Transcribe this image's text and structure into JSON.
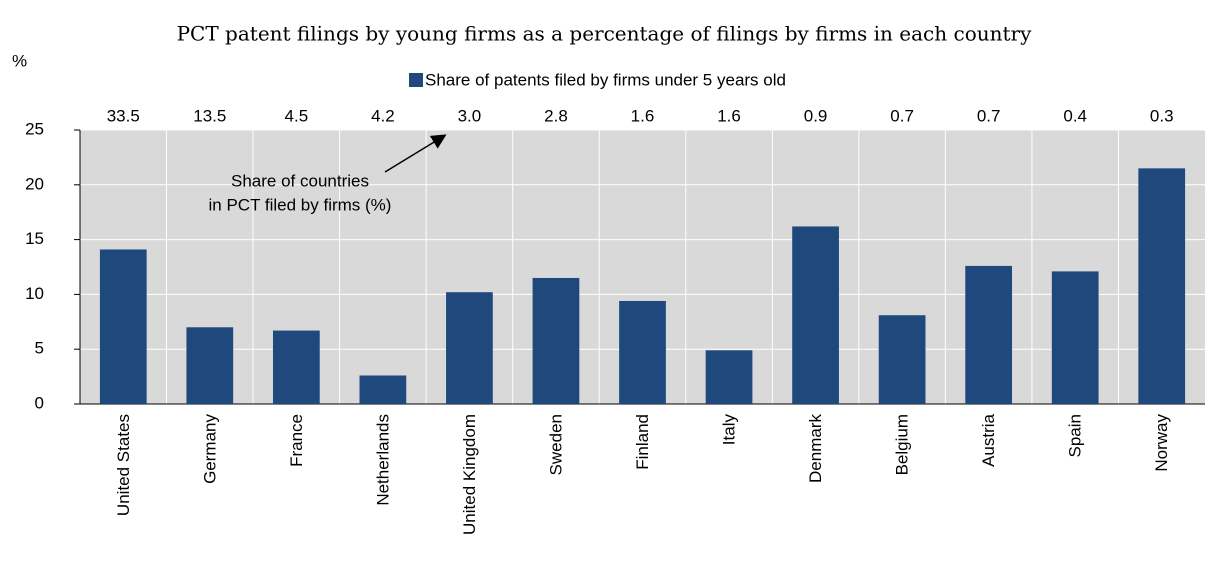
{
  "chart_data": {
    "type": "bar",
    "title": "PCT patent filings by young firms as a percentage of filings by firms in each country",
    "y_axis_label": "%",
    "categories": [
      "United States",
      "Germany",
      "France",
      "Netherlands",
      "United Kingdom",
      "Sweden",
      "Finland",
      "Italy",
      "Denmark",
      "Belgium",
      "Austria",
      "Spain",
      "Norway"
    ],
    "series": [
      {
        "name": "Share of patents filed by firms under 5 years old",
        "color": "#1f497d",
        "values": [
          14.1,
          7.0,
          6.7,
          2.6,
          10.2,
          11.5,
          9.4,
          4.9,
          16.2,
          8.1,
          12.6,
          12.1,
          21.5
        ]
      }
    ],
    "top_values": [
      33.5,
      13.5,
      4.5,
      4.2,
      3.0,
      2.8,
      1.6,
      1.6,
      0.9,
      0.7,
      0.7,
      0.4,
      0.3
    ],
    "top_value_labels": [
      "33.5",
      "13.5",
      "4.5",
      "4.2",
      "3.0",
      "2.8",
      "1.6",
      "1.6",
      "0.9",
      "0.7",
      "0.7",
      "0.4",
      "0.3"
    ],
    "annotation": [
      "Share of countries",
      "in PCT filed by firms (%)"
    ],
    "ylim": [
      0,
      25
    ],
    "yticks": [
      0,
      5,
      10,
      15,
      20,
      25
    ],
    "grid": true
  }
}
